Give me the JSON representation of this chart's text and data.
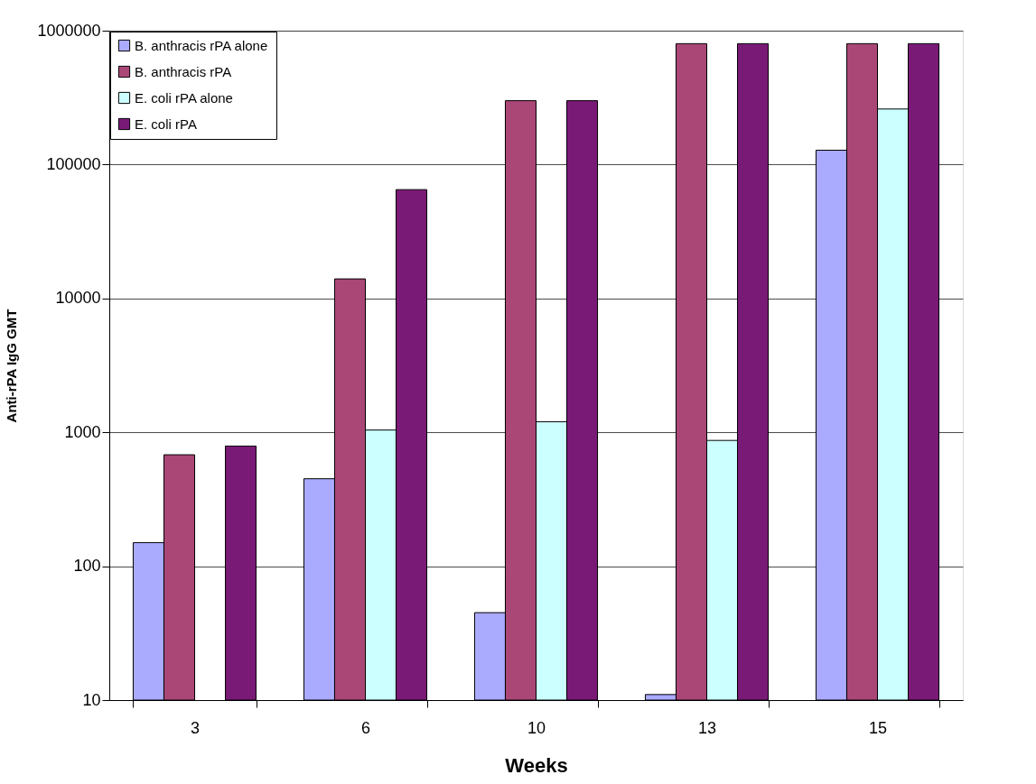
{
  "chart_data": {
    "type": "bar",
    "xlabel": "Weeks",
    "ylabel": "Anti-rPA IgG GMT",
    "categories": [
      "3",
      "6",
      "10",
      "13",
      "15"
    ],
    "series": [
      {
        "name": "B. anthracis rPA alone",
        "color": "#aaaaff",
        "values": [
          150,
          450,
          45,
          11,
          128000
        ]
      },
      {
        "name": "B. anthracis rPA",
        "color": "#aa4777",
        "values": [
          680,
          14000,
          300000,
          800000,
          800000
        ]
      },
      {
        "name": "E. coli rPA alone",
        "color": "#ccffff",
        "values": [
          null,
          1040,
          1200,
          870,
          260000
        ]
      },
      {
        "name": "E. coli rPA",
        "color": "#7a1a77",
        "values": [
          790,
          65000,
          300000,
          800000,
          800000
        ]
      }
    ],
    "log": true,
    "ylim": [
      10,
      1000000
    ],
    "yticks": [
      10,
      100,
      1000,
      10000,
      100000,
      1000000
    ],
    "grid": "y",
    "legend": "top left"
  }
}
